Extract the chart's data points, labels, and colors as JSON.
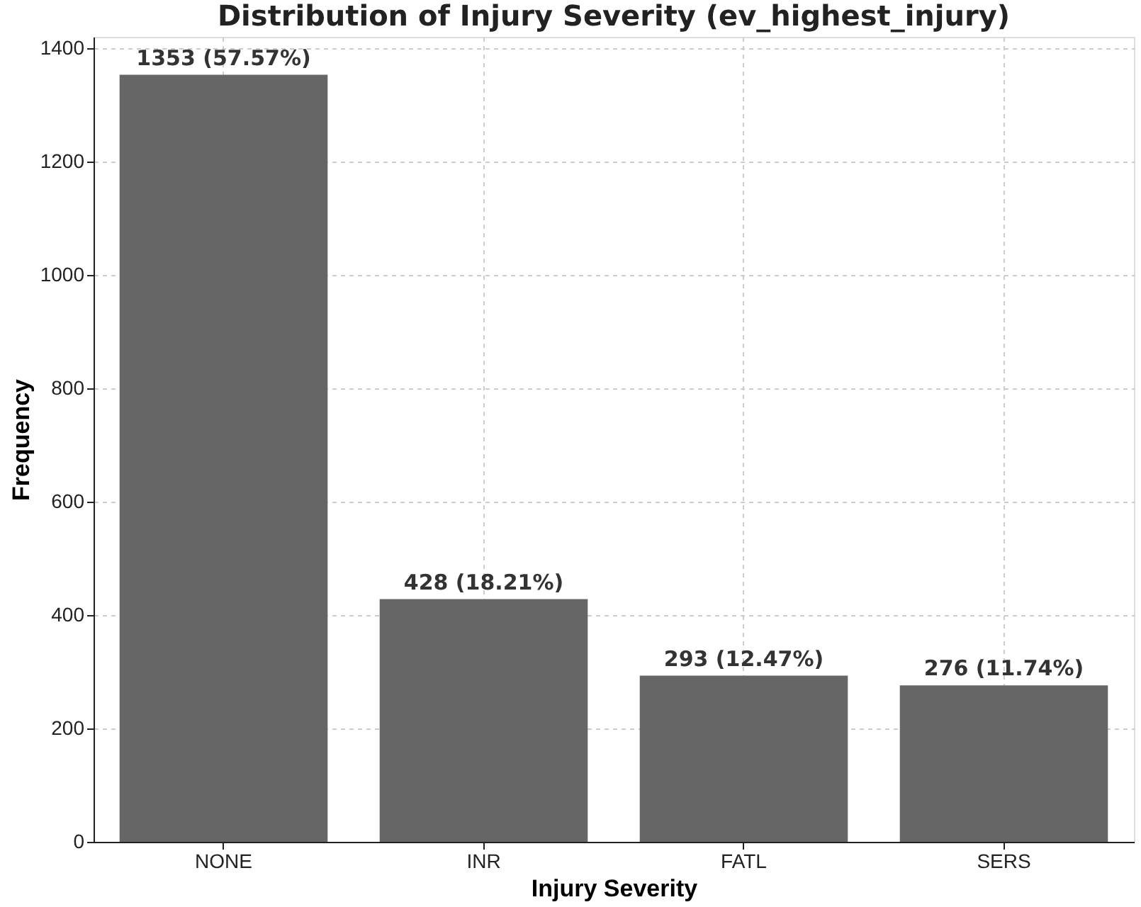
{
  "chart_data": {
    "type": "bar",
    "title": "Distribution of Injury Severity (ev_highest_injury)",
    "xlabel": "Injury Severity",
    "ylabel": "Frequency",
    "categories": [
      "NONE",
      "INR",
      "FATL",
      "SERS"
    ],
    "values": [
      1353,
      428,
      293,
      276
    ],
    "value_labels": [
      "1353 (57.57%)",
      "428 (18.21%)",
      "293 (12.47%)",
      "276 (11.74%)"
    ],
    "color": "#666666",
    "ylim": [
      0,
      1420
    ],
    "yticks": [
      0,
      200,
      400,
      600,
      800,
      1000,
      1200,
      1400
    ],
    "grid": true
  }
}
